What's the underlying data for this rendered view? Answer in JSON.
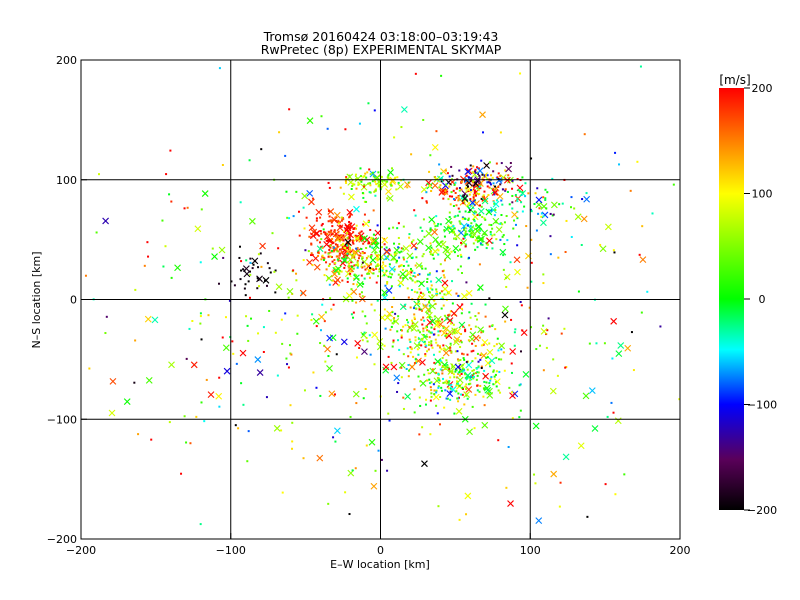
{
  "chart_data": {
    "type": "scatter",
    "title": "Tromsø 20160424 03:18:00–03:19:43",
    "subtitle": "RwPretec (8p) EXPERIMENTAL SKYMAP",
    "xlabel": "E–W location [km]",
    "ylabel": "N–S location [km]",
    "xlim": [
      -200,
      200
    ],
    "ylim": [
      -200,
      200
    ],
    "xticks": [
      "−200",
      "−100",
      "0",
      "100",
      "200"
    ],
    "yticks": [
      "−200",
      "−100",
      "0",
      "100",
      "200"
    ],
    "grid": true,
    "colorbar": {
      "label": "[m/s]",
      "range": [
        -200,
        200
      ],
      "ticks": [
        "200",
        "100",
        "0",
        "−100",
        "−200"
      ]
    },
    "marker_symbols": [
      "cross",
      "dot"
    ],
    "clusters": [
      {
        "x": -25,
        "y": 50,
        "sx": 10,
        "sy": 14,
        "n": 220,
        "vmean": 190,
        "vsd": 25
      },
      {
        "x": -20,
        "y": 35,
        "sx": 14,
        "sy": 10,
        "n": 120,
        "vmean": 90,
        "vsd": 60
      },
      {
        "x": -5,
        "y": 97,
        "sx": 10,
        "sy": 6,
        "n": 90,
        "vmean": 70,
        "vsd": 50
      },
      {
        "x": 10,
        "y": 30,
        "sx": 20,
        "sy": 14,
        "n": 150,
        "vmean": 40,
        "vsd": 60
      },
      {
        "x": 60,
        "y": 58,
        "sx": 13,
        "sy": 10,
        "n": 160,
        "vmean": 10,
        "vsd": 40
      },
      {
        "x": 62,
        "y": 92,
        "sx": 14,
        "sy": 8,
        "n": 160,
        "vmean": 150,
        "vsd": 80
      },
      {
        "x": 65,
        "y": 100,
        "sx": 10,
        "sy": 8,
        "n": 60,
        "vmean": -130,
        "vsd": 50
      },
      {
        "x": 100,
        "y": 78,
        "sx": 15,
        "sy": 8,
        "n": 60,
        "vmean": -20,
        "vsd": 50
      },
      {
        "x": 30,
        "y": -10,
        "sx": 15,
        "sy": 18,
        "n": 180,
        "vmean": 60,
        "vsd": 70
      },
      {
        "x": 45,
        "y": -45,
        "sx": 18,
        "sy": 20,
        "n": 220,
        "vmean": 110,
        "vsd": 70
      },
      {
        "x": 55,
        "y": -65,
        "sx": 15,
        "sy": 10,
        "n": 140,
        "vmean": 10,
        "vsd": 50
      },
      {
        "x": -85,
        "y": 22,
        "sx": 8,
        "sy": 10,
        "n": 35,
        "vmean": -195,
        "vsd": 10
      },
      {
        "x": 0,
        "y": 0,
        "sx": 90,
        "sy": 80,
        "n": 600,
        "vmean": 50,
        "vsd": 110
      }
    ]
  }
}
